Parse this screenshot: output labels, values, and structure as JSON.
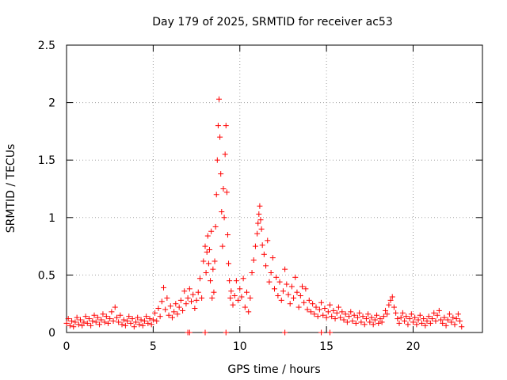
{
  "chart_data": {
    "type": "scatter",
    "title": "Day 179 of 2025, SRMTID for receiver ac53",
    "xlabel": "GPS time / hours",
    "ylabel": "SRMTID / TECUs",
    "xlim": [
      0,
      24
    ],
    "ylim": [
      0,
      2.5
    ],
    "x_ticks": [
      0,
      5,
      10,
      15,
      20
    ],
    "y_ticks": [
      0,
      0.5,
      1,
      1.5,
      2,
      2.5
    ],
    "x_tick_labels": [
      "0",
      "5",
      "10",
      "15",
      "20"
    ],
    "y_tick_labels": [
      "0",
      "0.5",
      "1",
      "1.5",
      "2",
      "2.5"
    ],
    "grid": true,
    "marker": "+",
    "marker_color": "#ff0000",
    "series": [
      {
        "name": "SRMTID",
        "points": [
          [
            0.0,
            0.08
          ],
          [
            0.1,
            0.12
          ],
          [
            0.2,
            0.06
          ],
          [
            0.3,
            0.1
          ],
          [
            0.4,
            0.05
          ],
          [
            0.5,
            0.09
          ],
          [
            0.6,
            0.13
          ],
          [
            0.7,
            0.07
          ],
          [
            0.8,
            0.11
          ],
          [
            0.9,
            0.06
          ],
          [
            1.0,
            0.09
          ],
          [
            1.1,
            0.14
          ],
          [
            1.2,
            0.08
          ],
          [
            1.3,
            0.12
          ],
          [
            1.4,
            0.06
          ],
          [
            1.5,
            0.1
          ],
          [
            1.6,
            0.15
          ],
          [
            1.7,
            0.09
          ],
          [
            1.8,
            0.13
          ],
          [
            1.9,
            0.07
          ],
          [
            2.0,
            0.11
          ],
          [
            2.1,
            0.16
          ],
          [
            2.2,
            0.09
          ],
          [
            2.3,
            0.14
          ],
          [
            2.4,
            0.08
          ],
          [
            2.5,
            0.12
          ],
          [
            2.6,
            0.18
          ],
          [
            2.7,
            0.1
          ],
          [
            2.8,
            0.22
          ],
          [
            2.9,
            0.13
          ],
          [
            3.0,
            0.09
          ],
          [
            3.1,
            0.15
          ],
          [
            3.2,
            0.07
          ],
          [
            3.3,
            0.11
          ],
          [
            3.4,
            0.06
          ],
          [
            3.5,
            0.1
          ],
          [
            3.6,
            0.14
          ],
          [
            3.7,
            0.08
          ],
          [
            3.8,
            0.12
          ],
          [
            3.9,
            0.05
          ],
          [
            4.0,
            0.09
          ],
          [
            4.1,
            0.13
          ],
          [
            4.2,
            0.07
          ],
          [
            4.3,
            0.11
          ],
          [
            4.4,
            0.06
          ],
          [
            4.5,
            0.1
          ],
          [
            4.6,
            0.14
          ],
          [
            4.7,
            0.08
          ],
          [
            4.8,
            0.12
          ],
          [
            4.9,
            0.07
          ],
          [
            5.0,
            0.11
          ],
          [
            5.1,
            0.17
          ],
          [
            5.2,
            0.1
          ],
          [
            5.3,
            0.21
          ],
          [
            5.4,
            0.14
          ],
          [
            5.5,
            0.27
          ],
          [
            5.6,
            0.39
          ],
          [
            5.7,
            0.2
          ],
          [
            5.8,
            0.3
          ],
          [
            5.9,
            0.15
          ],
          [
            6.0,
            0.23
          ],
          [
            6.1,
            0.13
          ],
          [
            6.2,
            0.18
          ],
          [
            6.3,
            0.25
          ],
          [
            6.4,
            0.16
          ],
          [
            6.5,
            0.22
          ],
          [
            6.6,
            0.28
          ],
          [
            6.7,
            0.19
          ],
          [
            6.8,
            0.36
          ],
          [
            6.9,
            0.25
          ],
          [
            7.0,
            0.3
          ],
          [
            7.1,
            0.38
          ],
          [
            7.2,
            0.27
          ],
          [
            7.3,
            0.33
          ],
          [
            7.4,
            0.21
          ],
          [
            7.5,
            0.28
          ],
          [
            7.6,
            0.35
          ],
          [
            7.7,
            0.47
          ],
          [
            7.8,
            0.3
          ],
          [
            7.9,
            0.62
          ],
          [
            8.0,
            0.75
          ],
          [
            8.05,
            0.52
          ],
          [
            8.1,
            0.7
          ],
          [
            8.15,
            0.84
          ],
          [
            8.2,
            0.6
          ],
          [
            8.25,
            0.72
          ],
          [
            8.3,
            0.45
          ],
          [
            8.35,
            0.88
          ],
          [
            8.4,
            0.3
          ],
          [
            8.45,
            0.55
          ],
          [
            8.5,
            0.35
          ],
          [
            8.55,
            0.62
          ],
          [
            8.6,
            0.92
          ],
          [
            8.65,
            1.2
          ],
          [
            8.7,
            1.5
          ],
          [
            8.75,
            1.8
          ],
          [
            8.8,
            2.03
          ],
          [
            8.85,
            1.7
          ],
          [
            8.9,
            1.38
          ],
          [
            8.95,
            1.05
          ],
          [
            9.0,
            0.75
          ],
          [
            9.05,
            1.25
          ],
          [
            9.1,
            1.0
          ],
          [
            9.15,
            1.55
          ],
          [
            9.2,
            1.8
          ],
          [
            9.25,
            1.22
          ],
          [
            9.3,
            0.85
          ],
          [
            9.35,
            0.6
          ],
          [
            9.4,
            0.45
          ],
          [
            9.45,
            0.3
          ],
          [
            9.5,
            0.36
          ],
          [
            9.6,
            0.24
          ],
          [
            9.7,
            0.32
          ],
          [
            9.8,
            0.45
          ],
          [
            9.9,
            0.28
          ],
          [
            10.0,
            0.38
          ],
          [
            10.1,
            0.31
          ],
          [
            10.2,
            0.47
          ],
          [
            10.3,
            0.22
          ],
          [
            10.4,
            0.35
          ],
          [
            10.5,
            0.18
          ],
          [
            10.6,
            0.3
          ],
          [
            10.7,
            0.52
          ],
          [
            10.8,
            0.63
          ],
          [
            10.9,
            0.75
          ],
          [
            11.0,
            0.86
          ],
          [
            11.05,
            0.95
          ],
          [
            11.1,
            1.03
          ],
          [
            11.15,
            1.1
          ],
          [
            11.2,
            0.98
          ],
          [
            11.25,
            0.9
          ],
          [
            11.3,
            0.76
          ],
          [
            11.4,
            0.68
          ],
          [
            11.5,
            0.58
          ],
          [
            11.6,
            0.8
          ],
          [
            11.7,
            0.44
          ],
          [
            11.8,
            0.52
          ],
          [
            11.9,
            0.65
          ],
          [
            12.0,
            0.38
          ],
          [
            12.1,
            0.48
          ],
          [
            12.2,
            0.32
          ],
          [
            12.3,
            0.44
          ],
          [
            12.4,
            0.28
          ],
          [
            12.5,
            0.36
          ],
          [
            12.6,
            0.55
          ],
          [
            12.7,
            0.42
          ],
          [
            12.8,
            0.33
          ],
          [
            12.9,
            0.25
          ],
          [
            13.0,
            0.4
          ],
          [
            13.1,
            0.3
          ],
          [
            13.2,
            0.48
          ],
          [
            13.3,
            0.35
          ],
          [
            13.4,
            0.22
          ],
          [
            13.5,
            0.32
          ],
          [
            13.6,
            0.4
          ],
          [
            13.7,
            0.26
          ],
          [
            13.8,
            0.38
          ],
          [
            13.9,
            0.2
          ],
          [
            14.0,
            0.28
          ],
          [
            14.1,
            0.18
          ],
          [
            14.2,
            0.25
          ],
          [
            14.3,
            0.16
          ],
          [
            14.4,
            0.22
          ],
          [
            14.5,
            0.14
          ],
          [
            14.6,
            0.2
          ],
          [
            14.7,
            0.26
          ],
          [
            14.8,
            0.15
          ],
          [
            14.9,
            0.21
          ],
          [
            15.0,
            0.13
          ],
          [
            15.1,
            0.18
          ],
          [
            15.2,
            0.24
          ],
          [
            15.3,
            0.14
          ],
          [
            15.4,
            0.19
          ],
          [
            15.5,
            0.12
          ],
          [
            15.6,
            0.17
          ],
          [
            15.7,
            0.22
          ],
          [
            15.8,
            0.13
          ],
          [
            15.9,
            0.18
          ],
          [
            16.0,
            0.11
          ],
          [
            16.1,
            0.16
          ],
          [
            16.2,
            0.09
          ],
          [
            16.3,
            0.14
          ],
          [
            16.4,
            0.18
          ],
          [
            16.5,
            0.1
          ],
          [
            16.6,
            0.15
          ],
          [
            16.7,
            0.08
          ],
          [
            16.8,
            0.13
          ],
          [
            16.9,
            0.17
          ],
          [
            17.0,
            0.09
          ],
          [
            17.1,
            0.14
          ],
          [
            17.2,
            0.07
          ],
          [
            17.3,
            0.12
          ],
          [
            17.4,
            0.16
          ],
          [
            17.5,
            0.09
          ],
          [
            17.6,
            0.13
          ],
          [
            17.7,
            0.07
          ],
          [
            17.8,
            0.11
          ],
          [
            17.9,
            0.15
          ],
          [
            18.0,
            0.08
          ],
          [
            18.1,
            0.12
          ],
          [
            18.2,
            0.09
          ],
          [
            18.3,
            0.14
          ],
          [
            18.4,
            0.19
          ],
          [
            18.5,
            0.16
          ],
          [
            18.6,
            0.24
          ],
          [
            18.7,
            0.28
          ],
          [
            18.8,
            0.31
          ],
          [
            18.9,
            0.22
          ],
          [
            19.0,
            0.17
          ],
          [
            19.1,
            0.12
          ],
          [
            19.2,
            0.08
          ],
          [
            19.3,
            0.13
          ],
          [
            19.4,
            0.17
          ],
          [
            19.5,
            0.1
          ],
          [
            19.6,
            0.14
          ],
          [
            19.7,
            0.07
          ],
          [
            19.8,
            0.12
          ],
          [
            19.9,
            0.16
          ],
          [
            20.0,
            0.09
          ],
          [
            20.1,
            0.13
          ],
          [
            20.2,
            0.07
          ],
          [
            20.3,
            0.11
          ],
          [
            20.4,
            0.15
          ],
          [
            20.5,
            0.08
          ],
          [
            20.6,
            0.12
          ],
          [
            20.7,
            0.06
          ],
          [
            20.8,
            0.1
          ],
          [
            20.9,
            0.14
          ],
          [
            21.0,
            0.08
          ],
          [
            21.1,
            0.12
          ],
          [
            21.2,
            0.17
          ],
          [
            21.3,
            0.1
          ],
          [
            21.4,
            0.15
          ],
          [
            21.5,
            0.19
          ],
          [
            21.6,
            0.11
          ],
          [
            21.7,
            0.08
          ],
          [
            21.8,
            0.13
          ],
          [
            21.9,
            0.06
          ],
          [
            22.0,
            0.11
          ],
          [
            22.1,
            0.16
          ],
          [
            22.2,
            0.09
          ],
          [
            22.3,
            0.13
          ],
          [
            22.4,
            0.07
          ],
          [
            22.5,
            0.12
          ],
          [
            22.6,
            0.16
          ],
          [
            22.7,
            0.1
          ],
          [
            22.8,
            0.05
          ],
          [
            7.0,
            0.0
          ],
          [
            7.1,
            0.0
          ],
          [
            8.0,
            0.0
          ],
          [
            9.2,
            0.0
          ],
          [
            12.6,
            0.0
          ],
          [
            14.7,
            0.0
          ],
          [
            15.2,
            0.0
          ]
        ]
      }
    ]
  }
}
